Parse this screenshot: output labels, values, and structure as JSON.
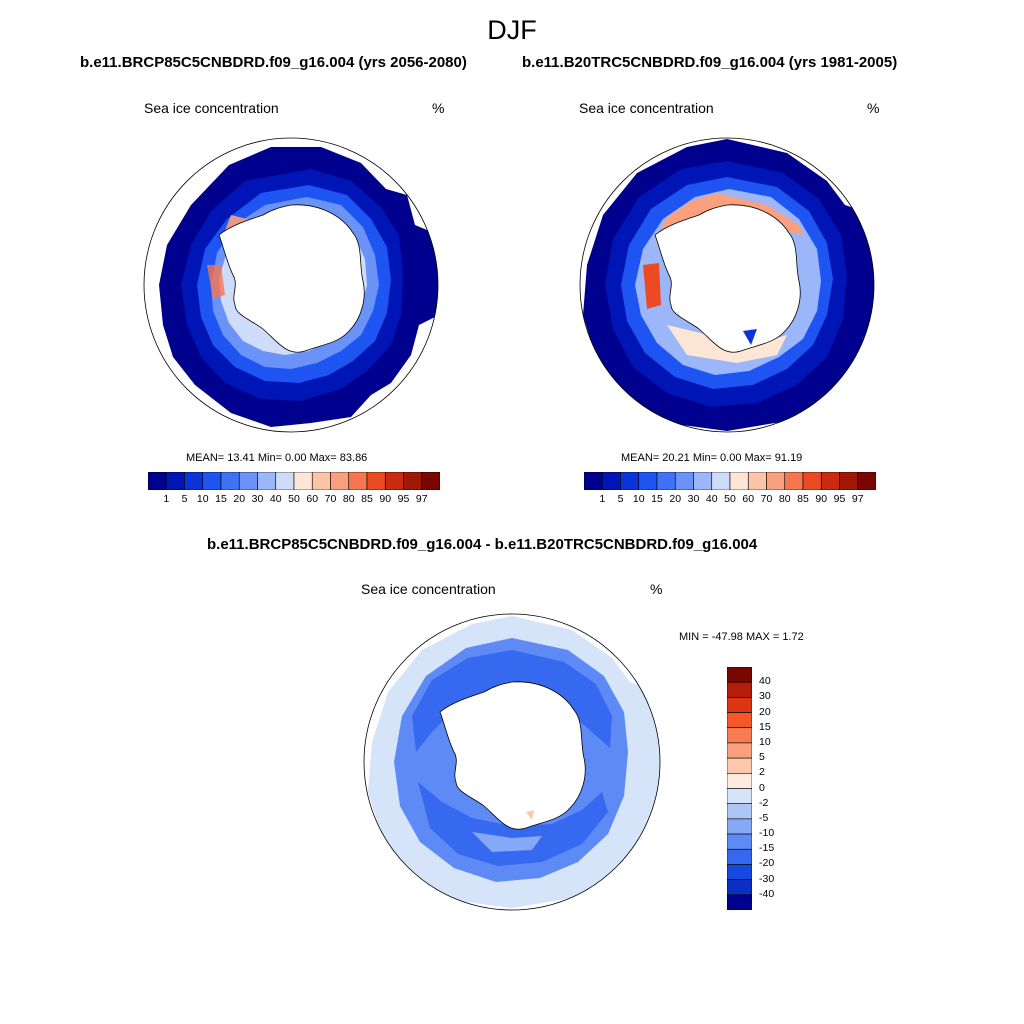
{
  "figure_title": "DJF",
  "panels": [
    {
      "case_title": "b.e11.BRCP85C5CNBDRD.f09_g16.004 (yrs 2056-2080)",
      "left_label": "Sea ice concentration",
      "right_label": "%",
      "stats": "MEAN=  13.41  Min=    0.00  Max=  83.86"
    },
    {
      "case_title": "b.e11.B20TRC5CNBDRD.f09_g16.004 (yrs 1981-2005)",
      "left_label": "Sea ice concentration",
      "right_label": "%",
      "stats": "MEAN=  20.21  Min=    0.00  Max=  91.19"
    }
  ],
  "diff_panel": {
    "case_title": "b.e11.BRCP85C5CNBDRD.f09_g16.004 - b.e11.B20TRC5CNBDRD.f09_g16.004",
    "left_label": "Sea ice concentration",
    "right_label": "%",
    "stats": "MIN = -47.98 MAX =   1.72"
  },
  "conc_colorbar": {
    "labels": [
      "1",
      "5",
      "10",
      "15",
      "20",
      "30",
      "40",
      "50",
      "60",
      "70",
      "80",
      "85",
      "90",
      "95",
      "97"
    ],
    "colors": [
      "#00008f",
      "#0015b5",
      "#0a33d8",
      "#1e55f2",
      "#3f72f5",
      "#6b92f7",
      "#9bb7fa",
      "#cfdcf9",
      "#fde6d6",
      "#fdc4a8",
      "#fba07e",
      "#f5764f",
      "#ec4a22",
      "#c92a10",
      "#9e1a07",
      "#7a0600"
    ]
  },
  "diff_colorbar": {
    "labels": [
      "40",
      "30",
      "20",
      "15",
      "10",
      "5",
      "2",
      "0",
      "-2",
      "-5",
      "-10",
      "-15",
      "-20",
      "-30",
      "-40"
    ],
    "colors": [
      "#7a0600",
      "#b41d0a",
      "#dd3512",
      "#f5562a",
      "#f77c52",
      "#fba07e",
      "#fdc7ab",
      "#feeadf",
      "#d6e4f9",
      "#aec6f7",
      "#85a9f6",
      "#5d8af5",
      "#3668f0",
      "#1649e1",
      "#0a2fc2",
      "#00008f"
    ]
  }
}
